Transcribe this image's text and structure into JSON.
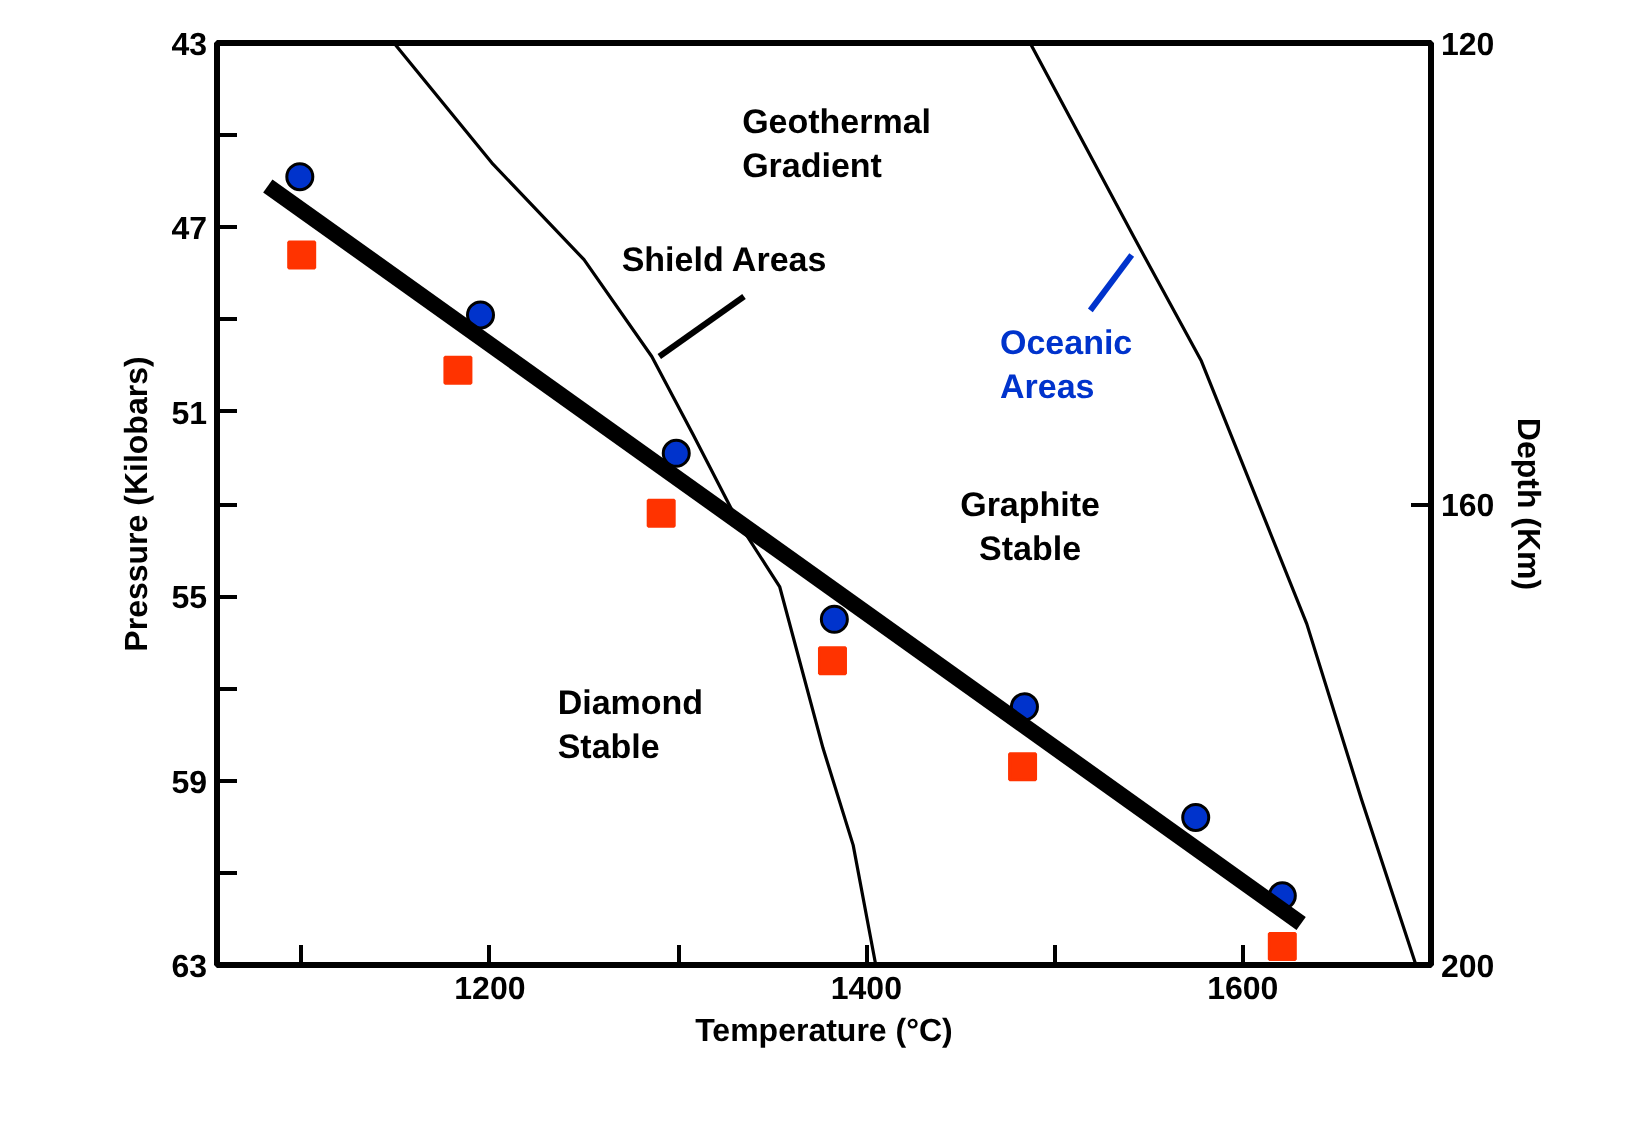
{
  "chart_data": {
    "type": "scatter",
    "xlabel": "Temperature (°C)",
    "ylabel": "Pressure (Kilobars)",
    "y2label": "Depth (Km)",
    "xlim": [
      1055,
      1700
    ],
    "ylim": [
      63,
      43
    ],
    "y2lim": [
      200,
      120
    ],
    "xticks": [
      {
        "value": 1100,
        "label": null
      },
      1200,
      {
        "value": 1300,
        "label": null
      },
      1400,
      {
        "value": 1500,
        "label": null
      },
      1600
    ],
    "yticks": [
      43,
      {
        "value": 45,
        "label": null
      },
      47,
      {
        "value": 49,
        "label": null
      },
      51,
      {
        "value": 53,
        "label": null
      },
      55,
      {
        "value": 57,
        "label": null
      },
      59,
      {
        "value": 61,
        "label": null
      },
      63
    ],
    "y2ticks": [
      120,
      160,
      200
    ],
    "grid": false,
    "series": [
      {
        "marker": "circle",
        "color": "#0033cc",
        "x": [
          1099,
          1195,
          1299,
          1383,
          1484,
          1575,
          1621
        ],
        "values": [
          45.9,
          48.9,
          51.9,
          55.5,
          57.4,
          59.8,
          61.5
        ]
      },
      {
        "marker": "square",
        "color": "#ff3300",
        "x": [
          1100,
          1183,
          1291,
          1382,
          1483,
          1621
        ],
        "values": [
          47.6,
          50.1,
          53.2,
          56.4,
          58.7,
          62.6
        ]
      },
      {
        "type": "line",
        "line_style": "solid",
        "color": "#000000",
        "x": [
          1082,
          1631
        ],
        "values": [
          46.1,
          62.1
        ]
      },
      {
        "type": "line",
        "line_style": "solid",
        "color": "#000000",
        "x": [
          1149,
          1201,
          1250,
          1286,
          1308,
          1332,
          1354,
          1377,
          1393,
          1405
        ],
        "values": [
          43,
          45.6,
          47.7,
          49.8,
          51.5,
          53.4,
          54.8,
          58.3,
          60.4,
          63
        ]
      },
      {
        "type": "line",
        "line_style": "solid",
        "color": "#000000",
        "x": [
          1487,
          1542,
          1578,
          1634,
          1663,
          1692
        ],
        "values": [
          43,
          47.2,
          49.9,
          55.6,
          59.4,
          63
        ]
      }
    ],
    "annotations": [
      "Geothermal Gradient",
      {
        "text": "Shield Areas",
        "x": 1290,
        "y": 49.8
      },
      {
        "text": "Oceanic Areas",
        "x": 1541,
        "y": 47.6
      },
      "Graphite Stable",
      "Diamond Stable"
    ]
  }
}
